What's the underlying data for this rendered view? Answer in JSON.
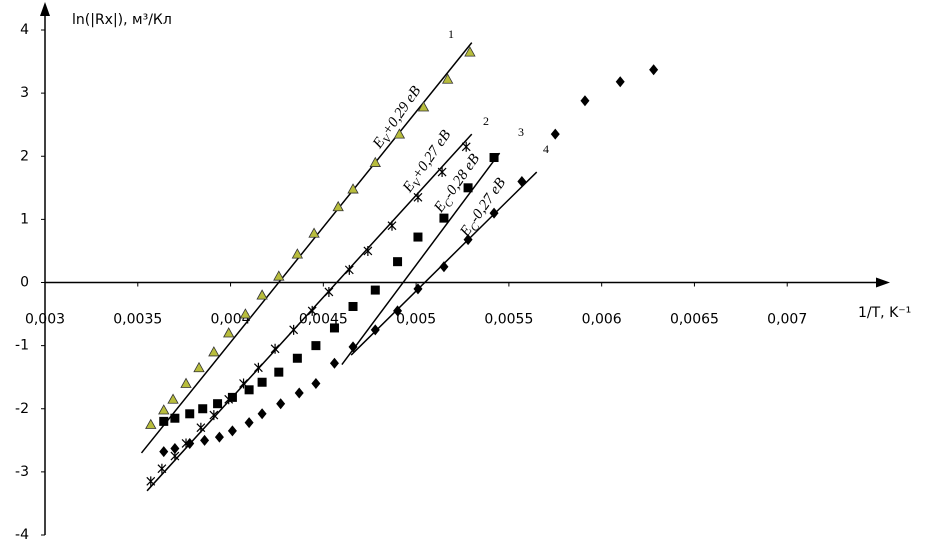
{
  "chart_data": {
    "type": "scatter",
    "y_label": "ln(|Rx|), м³/Кл",
    "x_label": "1/T, K⁻¹",
    "xlim": [
      0.003,
      0.0075
    ],
    "ylim": [
      -4,
      4
    ],
    "xticks": [
      {
        "value": 0.003,
        "label": "0,003"
      },
      {
        "value": 0.0035,
        "label": "0,0035"
      },
      {
        "value": 0.004,
        "label": "0,004"
      },
      {
        "value": 0.0045,
        "label": "0,0045"
      },
      {
        "value": 0.005,
        "label": "0,005"
      },
      {
        "value": 0.0055,
        "label": "0,0055"
      },
      {
        "value": 0.006,
        "label": "0,006"
      },
      {
        "value": 0.0065,
        "label": "0,0065"
      },
      {
        "value": 0.007,
        "label": "0,007"
      }
    ],
    "yticks": [
      -4,
      -3,
      -2,
      -1,
      0,
      1,
      2,
      3,
      4
    ],
    "grid": false,
    "series": [
      {
        "marker": "triangle",
        "color": "#b8bd3c",
        "x": [
          0.00357,
          0.00364,
          0.00369,
          0.00376,
          0.00383,
          0.00391,
          0.00399,
          0.00408,
          0.00417,
          0.00426,
          0.00436,
          0.00445,
          0.00458,
          0.00466,
          0.00478,
          0.00491,
          0.00504,
          0.00517,
          0.00529
        ],
        "values": [
          -2.25,
          -2.02,
          -1.85,
          -1.6,
          -1.35,
          -1.1,
          -0.8,
          -0.5,
          -0.2,
          0.1,
          0.45,
          0.78,
          1.2,
          1.48,
          1.9,
          2.35,
          2.78,
          3.22,
          3.65
        ]
      },
      {
        "marker": "asterisk",
        "color": "#000000",
        "x": [
          0.00357,
          0.00363,
          0.0037,
          0.00376,
          0.00384,
          0.00391,
          0.00399,
          0.00407,
          0.00415,
          0.00424,
          0.00434,
          0.00444,
          0.00453,
          0.00464,
          0.00474,
          0.00487,
          0.00501,
          0.00514,
          0.00527
        ],
        "values": [
          -3.15,
          -2.95,
          -2.75,
          -2.55,
          -2.3,
          -2.1,
          -1.85,
          -1.6,
          -1.35,
          -1.05,
          -0.75,
          -0.45,
          -0.15,
          0.2,
          0.5,
          0.9,
          1.35,
          1.75,
          2.15
        ]
      },
      {
        "marker": "square",
        "color": "#000000",
        "x": [
          0.00364,
          0.0037,
          0.00378,
          0.00385,
          0.00393,
          0.00401,
          0.0041,
          0.00417,
          0.00426,
          0.00436,
          0.00446,
          0.00456,
          0.00466,
          0.00478,
          0.0049,
          0.00501,
          0.00515,
          0.00528,
          0.00542
        ],
        "values": [
          -2.2,
          -2.15,
          -2.08,
          -2.0,
          -1.92,
          -1.82,
          -1.7,
          -1.58,
          -1.42,
          -1.2,
          -1.0,
          -0.72,
          -0.38,
          -0.12,
          0.33,
          0.72,
          1.02,
          1.5,
          1.98
        ]
      },
      {
        "marker": "diamond",
        "color": "#000000",
        "x": [
          0.00364,
          0.0037,
          0.00378,
          0.00386,
          0.00394,
          0.00401,
          0.0041,
          0.00417,
          0.00427,
          0.00437,
          0.00446,
          0.00456,
          0.00466,
          0.00478,
          0.0049,
          0.00501,
          0.00515,
          0.00528,
          0.00542,
          0.00557,
          0.00575,
          0.00591,
          0.0061,
          0.00628
        ],
        "values": [
          -2.68,
          -2.63,
          -2.55,
          -2.5,
          -2.45,
          -2.35,
          -2.22,
          -2.08,
          -1.92,
          -1.75,
          -1.6,
          -1.28,
          -1.02,
          -0.75,
          -0.45,
          -0.1,
          0.25,
          0.68,
          1.1,
          1.6,
          2.35,
          2.88,
          3.18,
          3.37
        ]
      }
    ],
    "fit_lines": [
      {
        "x": [
          0.00352,
          0.0053
        ],
        "values": [
          -2.7,
          3.8
        ]
      },
      {
        "x": [
          0.00355,
          0.0053
        ],
        "values": [
          -3.3,
          2.35
        ]
      },
      {
        "x": [
          0.0046,
          0.00545
        ],
        "values": [
          -1.3,
          2.05
        ]
      },
      {
        "x": [
          0.00465,
          0.00565
        ],
        "values": [
          -1.15,
          1.75
        ]
      }
    ],
    "annotations": [
      {
        "number": "1",
        "base": "E",
        "sub": "V",
        "rest": "+0,29 eB"
      },
      {
        "number": "2",
        "base": "E",
        "sub": "V",
        "rest": "+0,27 eB"
      },
      {
        "number": "3",
        "base": "E",
        "sub": "C",
        "rest": "-0,28 eB"
      },
      {
        "number": "4",
        "base": "E",
        "sub": "C",
        "rest": "-0,27 eB"
      }
    ]
  }
}
